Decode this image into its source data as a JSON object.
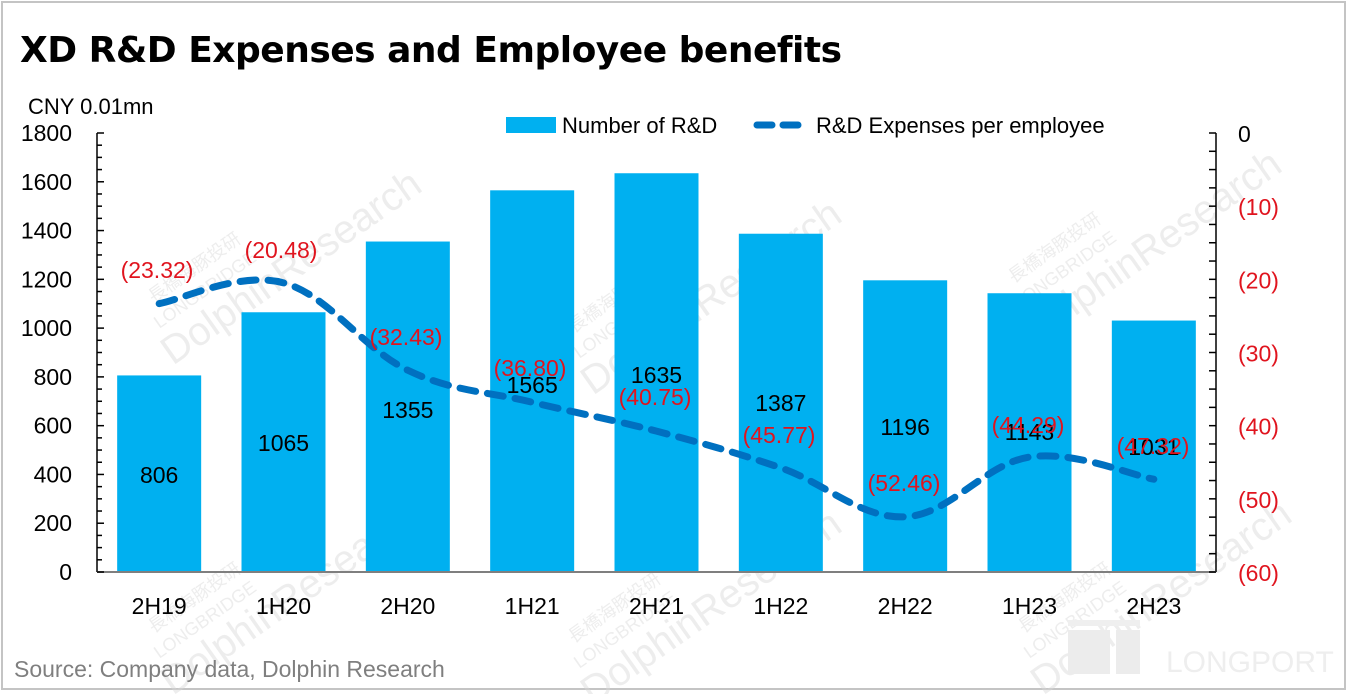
{
  "title": "XD R&D Expenses and Employee benefits",
  "unit_label": "CNY 0.01mn",
  "source": "Source:  Company data, Dolphin Research",
  "watermarks": {
    "brand_cn": "長橋海豚投研",
    "brand_en": "LONGBRIDGE",
    "research": "DolphinResearch",
    "corner": "LONGPORT"
  },
  "colors": {
    "bar": "#00b0f0",
    "line": "#0070c0",
    "negative_label": "#e0141e",
    "axis": "#000000",
    "frame": "#c4c4c4"
  },
  "chart_data": {
    "type": "bar+line",
    "title": "XD R&D Expenses and Employee benefits",
    "categories": [
      "2H19",
      "1H20",
      "2H20",
      "1H21",
      "2H21",
      "1H22",
      "2H22",
      "1H23",
      "2H23"
    ],
    "series": [
      {
        "name": "Number of R&D",
        "type": "bar",
        "axis": "left",
        "values": [
          806,
          1065,
          1355,
          1565,
          1635,
          1387,
          1196,
          1143,
          1031
        ],
        "labels": [
          "806",
          "1065",
          "1355",
          "1565",
          "1635",
          "1387",
          "1196",
          "1143",
          "1031"
        ]
      },
      {
        "name": "R&D Expenses per employee",
        "type": "line",
        "style": "dashed-smooth",
        "axis": "right",
        "values": [
          -23.32,
          -20.48,
          -32.43,
          -36.8,
          -40.75,
          -45.77,
          -52.46,
          -44.29,
          -47.32
        ],
        "labels": [
          "(23.32)",
          "(20.48)",
          "(32.43)",
          "(36.80)",
          "(40.75)",
          "(45.77)",
          "(52.46)",
          "(44.29)",
          "(47.32)"
        ]
      }
    ],
    "left_axis": {
      "label": "CNY 0.01mn",
      "ylim": [
        0,
        1800
      ],
      "ticks": [
        0,
        200,
        400,
        600,
        800,
        1000,
        1200,
        1400,
        1600,
        1800
      ],
      "tick_labels": [
        "0",
        "200",
        "400",
        "600",
        "800",
        "1000",
        "1200",
        "1400",
        "1600",
        "1800"
      ]
    },
    "right_axis": {
      "ylim": [
        -60,
        0
      ],
      "ticks": [
        0,
        -10,
        -20,
        -30,
        -40,
        -50,
        -60
      ],
      "tick_labels": [
        "0",
        "(10)",
        "(20)",
        "(30)",
        "(40)",
        "(50)",
        "(60)"
      ]
    },
    "legend": {
      "position": "top-right",
      "entries": [
        "Number of R&D",
        "R&D Expenses per employee"
      ]
    },
    "grid": false
  }
}
